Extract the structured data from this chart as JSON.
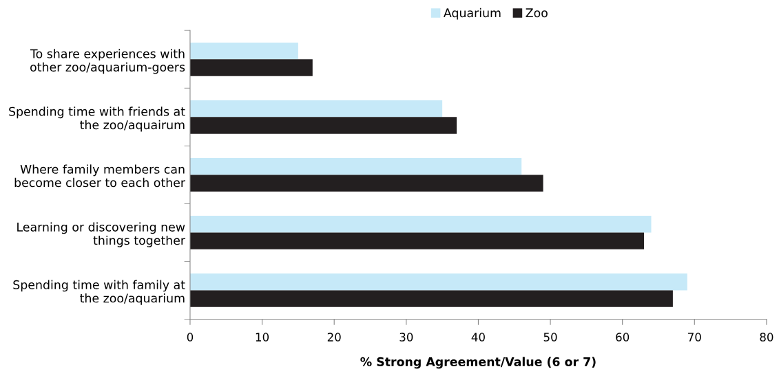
{
  "chart_data": {
    "type": "bar",
    "orientation": "horizontal",
    "xlabel": "% Strong Agreement/Value (6 or 7)",
    "categories": [
      "To share experiences with\nother zoo/aquarium-goers",
      "Spending time with friends at\nthe zoo/aquairum",
      "Where family members can\nbecome closer to each other",
      "Learning or discovering new\nthings together",
      "Spending time with family at\nthe zoo/aquarium"
    ],
    "series": [
      {
        "name": "Aquarium",
        "color": "#c6e9f8",
        "values": [
          15,
          35,
          46,
          64,
          69
        ]
      },
      {
        "name": "Zoo",
        "color": "#231f20",
        "values": [
          17,
          37,
          49,
          63,
          67
        ]
      }
    ],
    "xlim": [
      0,
      80
    ],
    "xticks": [
      0,
      10,
      20,
      30,
      40,
      50,
      60,
      70,
      80
    ],
    "grid": false,
    "legend": "top"
  }
}
